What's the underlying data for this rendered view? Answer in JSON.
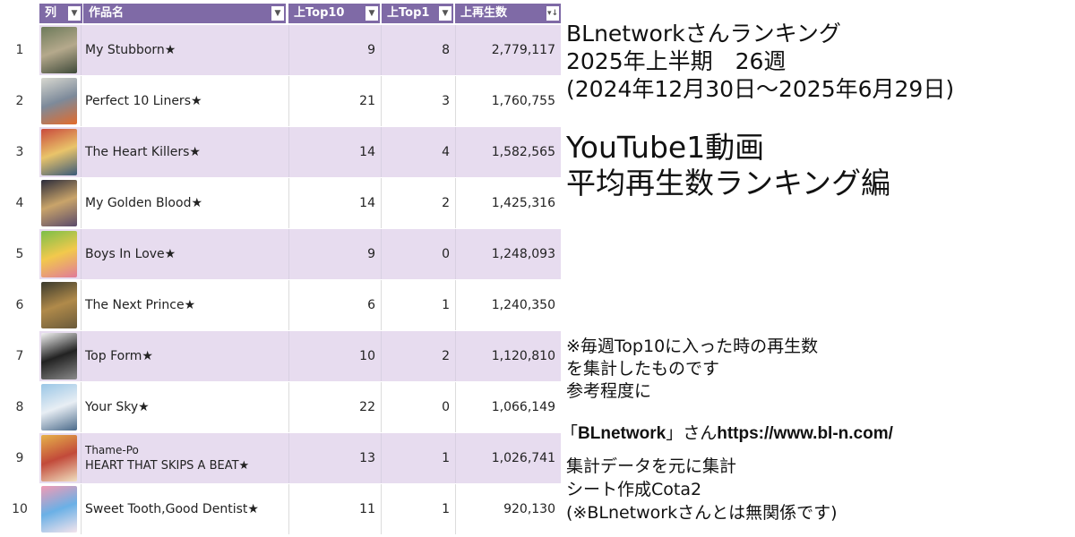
{
  "colors": {
    "header_bg": "#7f6aa6",
    "row_alt": "#e7dcef",
    "row_plain": "#ffffff"
  },
  "sheet": {
    "headers": {
      "rank": "列",
      "title": "作品名",
      "top10": "上Top10",
      "top1": "上Top1",
      "plays": "上再生数"
    },
    "dropdown_icon": "chevron-down-icon",
    "sort_icon": "sort-desc-icon",
    "rows": [
      {
        "rank": "1",
        "title": "My Stubborn★",
        "top10": "9",
        "top1": "8",
        "plays": "2,779,117",
        "thumb_colors": [
          "#6d7a5a",
          "#b5a98c",
          "#3f4a3a"
        ]
      },
      {
        "rank": "2",
        "title": "Perfect 10 Liners★",
        "top10": "21",
        "top1": "3",
        "plays": "1,760,755",
        "thumb_colors": [
          "#d8d8d0",
          "#7d8a9a",
          "#e36b2b"
        ]
      },
      {
        "rank": "3",
        "title": "The Heart Killers★",
        "top10": "14",
        "top1": "4",
        "plays": "1,582,565",
        "thumb_colors": [
          "#c94a3c",
          "#e9c46a",
          "#3a5a7a"
        ]
      },
      {
        "rank": "4",
        "title": "My Golden Blood★",
        "top10": "14",
        "top1": "2",
        "plays": "1,425,316",
        "thumb_colors": [
          "#2c2c3a",
          "#c9a46a",
          "#5a4a6a"
        ]
      },
      {
        "rank": "5",
        "title": "Boys In Love★",
        "top10": "9",
        "top1": "0",
        "plays": "1,248,093",
        "thumb_colors": [
          "#7bbf4a",
          "#f2c94c",
          "#e07a9a"
        ]
      },
      {
        "rank": "6",
        "title": "The Next Prince★",
        "top10": "6",
        "top1": "1",
        "plays": "1,240,350",
        "thumb_colors": [
          "#3a3a2c",
          "#b08a4a",
          "#6a5a3a"
        ]
      },
      {
        "rank": "7",
        "title": "Top Form★",
        "top10": "10",
        "top1": "2",
        "plays": "1,120,810",
        "thumb_colors": [
          "#f4f4f4",
          "#222222",
          "#8a8a8a"
        ]
      },
      {
        "rank": "8",
        "title": "Your Sky★",
        "top10": "22",
        "top1": "0",
        "plays": "1,066,149",
        "thumb_colors": [
          "#9ac6e6",
          "#e8eef4",
          "#4a6a8a"
        ]
      },
      {
        "rank": "9",
        "title_line1": "Thame-Po",
        "title_line2": "HEART THAT SKIPS A BEAT★",
        "top10": "13",
        "top1": "1",
        "plays": "1,026,741",
        "thumb_colors": [
          "#e6b24a",
          "#c24a3a",
          "#f0e0c0"
        ]
      },
      {
        "rank": "10",
        "title": "Sweet Tooth,Good Dentist★",
        "top10": "11",
        "top1": "1",
        "plays": "920,130",
        "thumb_colors": [
          "#f29ab4",
          "#6ab0e6",
          "#f4e4ec"
        ]
      }
    ]
  },
  "panel": {
    "title_lines": [
      "BLnetworkさんランキング",
      "2025年上半期　26週",
      "(2024年12月30日～2025年6月29日)"
    ],
    "subtitle_lines": [
      "YouTube1動画",
      "平均再生数ランキング編"
    ],
    "note_lines": [
      "※毎週Top10に入った時の再生数",
      "を集計したものです",
      "参考程度に"
    ],
    "source_prefix": "「",
    "source_name": "BLnetwork",
    "source_mid": "」さん",
    "source_url": "https://www.bl-n.com/",
    "credit_lines": [
      "集計データを元に集計",
      "シート作成Cota2",
      "(※BLnetworkさんとは無関係です)"
    ]
  }
}
